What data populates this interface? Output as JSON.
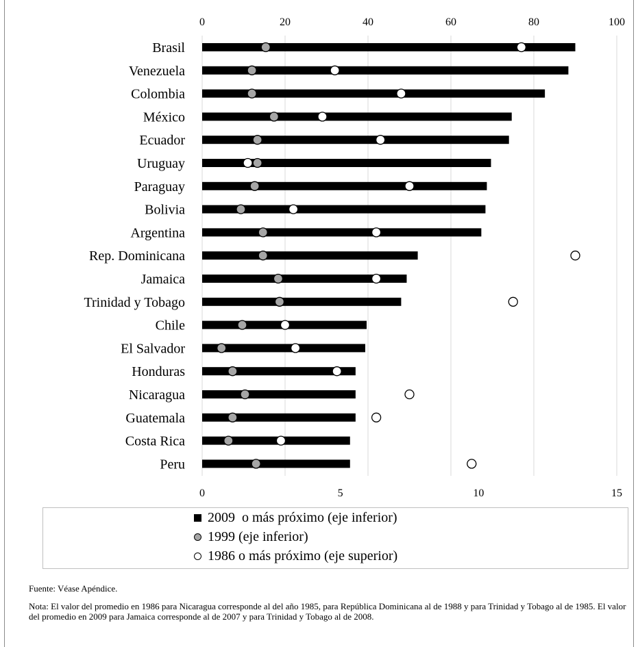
{
  "chart_data": {
    "type": "bar",
    "categories": [
      "Brasil",
      "Venezuela",
      "Colombia",
      "México",
      "Ecuador",
      "Uruguay",
      "Paraguay",
      "Bolivia",
      "Argentina",
      "Rep. Dominicana",
      "Jamaica",
      "Trinidad y Tobago",
      "Chile",
      "El Salvador",
      "Honduras",
      "Nicaragua",
      "Guatemala",
      "Costa Rica",
      "Peru"
    ],
    "series": [
      {
        "name": "2009  o más próximo (eje inferior)",
        "axis": "bottom",
        "mark": "bar",
        "values": [
          13.5,
          13.25,
          12.4,
          11.2,
          11.1,
          10.45,
          10.3,
          10.25,
          10.1,
          7.8,
          7.4,
          7.2,
          5.95,
          5.9,
          5.55,
          5.55,
          5.55,
          5.35,
          5.35
        ]
      },
      {
        "name": "1999 (eje inferior)",
        "axis": "bottom",
        "mark": "gray-circle",
        "values": [
          2.3,
          1.8,
          1.8,
          2.6,
          2.0,
          2.0,
          1.9,
          1.4,
          2.2,
          2.2,
          2.75,
          2.8,
          1.45,
          0.7,
          1.1,
          1.55,
          1.1,
          0.95,
          1.95
        ]
      },
      {
        "name": "1986 o más próximo (eje superior)",
        "axis": "top",
        "mark": "white-circle",
        "values": [
          77,
          32,
          48,
          29,
          43,
          11,
          50,
          22,
          42,
          90,
          42,
          75,
          20,
          22.5,
          32.5,
          50,
          42,
          19,
          65
        ]
      }
    ],
    "bottom_axis": {
      "range": [
        0,
        15
      ],
      "ticks": [
        "0",
        "5",
        "10",
        "15"
      ]
    },
    "top_axis": {
      "range": [
        0,
        100
      ],
      "ticks": [
        "0",
        "20",
        "40",
        "60",
        "80",
        "100"
      ]
    },
    "grid": "vertical",
    "legend_position": "bottom",
    "colors": {
      "bar": "#000000",
      "series_1999": "#a6a6a6",
      "series_1986": "#ffffff",
      "grid": "#d9d9d9"
    }
  },
  "legend": {
    "item_2009": "2009  o más próximo (eje inferior)",
    "item_1999": "1999 (eje inferior)",
    "item_1986": "1986 o más próximo (eje superior)"
  },
  "source": "Fuente: Véase Apéndice.",
  "note": "Nota: El valor del promedio en 1986 para Nicaragua corresponde al del año 1985, para República Dominicana al de 1988 y para Trinidad y Tobago al de 1985. El valor del promedio en 2009 para Jamaica corresponde al de 2007 y para Trinidad y Tobago al de 2008."
}
